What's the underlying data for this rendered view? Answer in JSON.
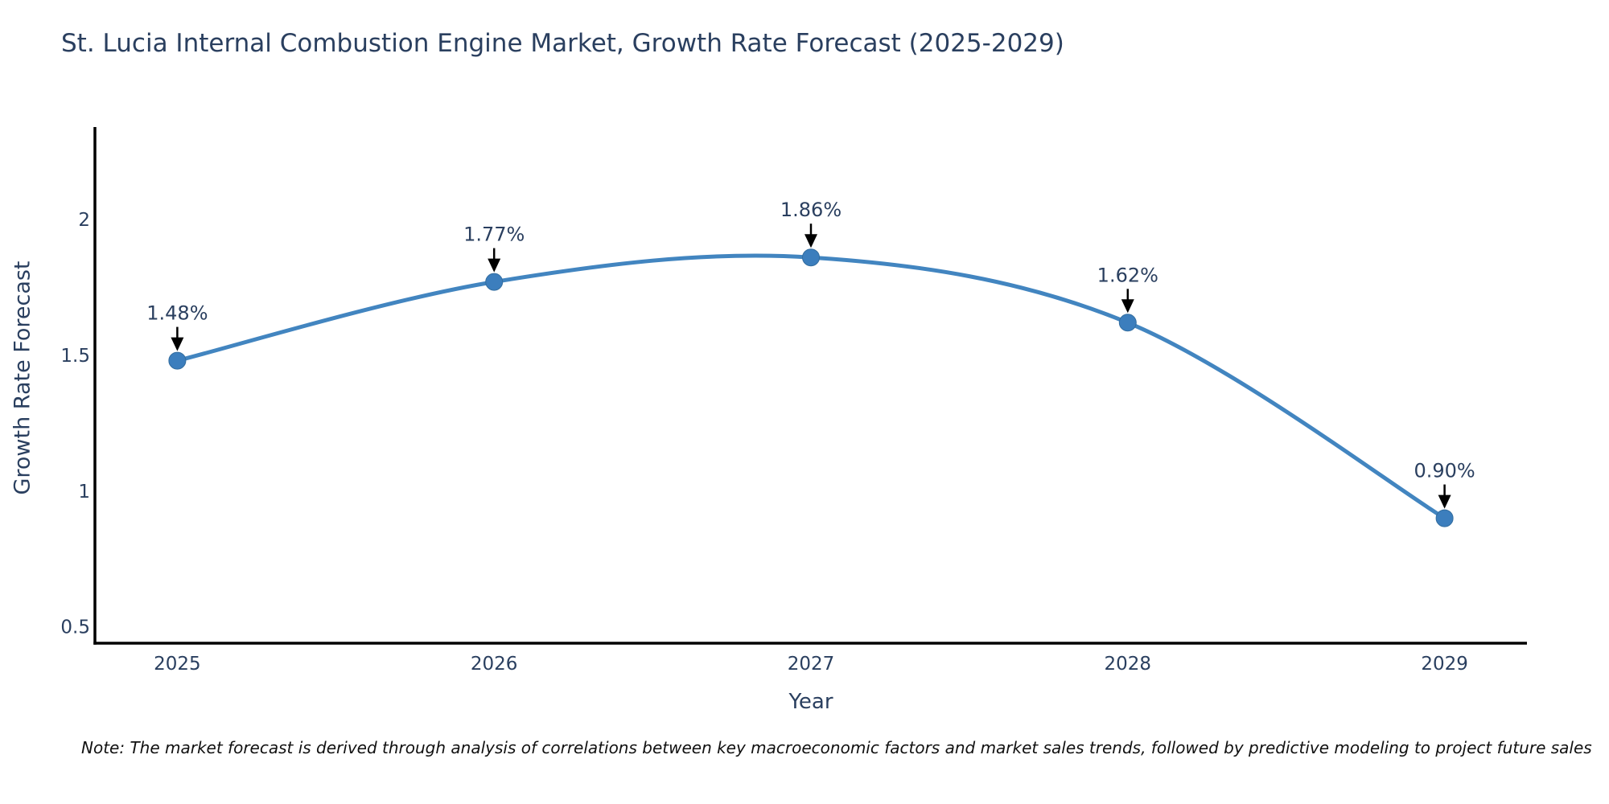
{
  "title": "St. Lucia Internal Combustion Engine Market, Growth Rate Forecast (2025-2029)",
  "note": "Note: The market forecast is derived through analysis of correlations between key macroeconomic factors and market sales trends, followed by predictive modeling to project future sales",
  "chart_data": {
    "type": "line",
    "title": "St. Lucia Internal Combustion Engine Market, Growth Rate Forecast (2025-2029)",
    "xlabel": "Year",
    "ylabel": "Growth Rate Forecast",
    "x": [
      2025,
      2026,
      2027,
      2028,
      2029
    ],
    "series": [
      {
        "name": "Growth Rate Forecast",
        "values": [
          1.48,
          1.77,
          1.86,
          1.62,
          0.9
        ],
        "point_labels": [
          "1.48%",
          "1.77%",
          "1.86%",
          "1.62%",
          "0.90%"
        ]
      }
    ],
    "xtick_labels": [
      "2025",
      "2026",
      "2027",
      "2028",
      "2029"
    ],
    "yticks": [
      0.5,
      1,
      1.5,
      2
    ],
    "ytick_labels": [
      "0.5",
      "1",
      "1.5",
      "2"
    ],
    "xlim": [
      2024.74,
      2029.26
    ],
    "ylim": [
      0.44,
      2.34
    ],
    "grid": false,
    "legend": false,
    "line_shape": "spline",
    "colors": {
      "line": "#4285c0",
      "marker": "#3c7ebd",
      "marker_edge": "#336d9f",
      "axis": "#000000",
      "text": "#2a3f5f",
      "arrow": "#000000"
    }
  }
}
